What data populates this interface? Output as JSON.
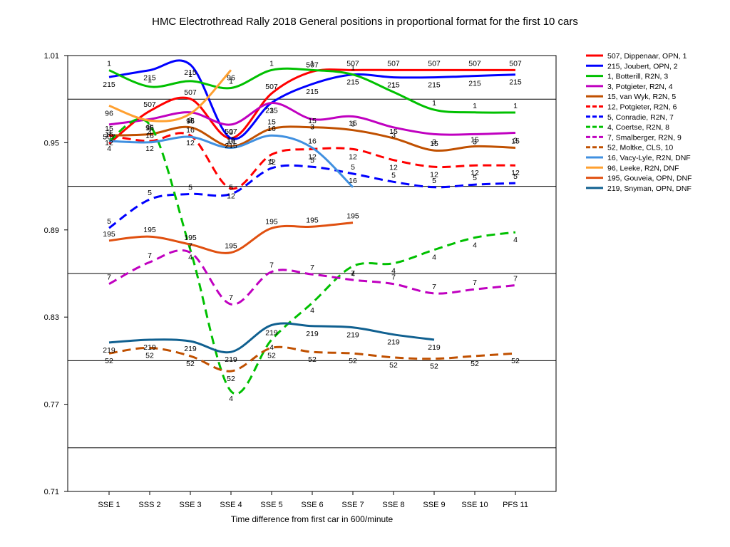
{
  "chart_data": {
    "type": "line",
    "title": "HMC Electrothread Rally 2018  General positions in proportional format for the first 10 cars",
    "xlabel": "Time difference from first car in 600/minute",
    "ylabel": "",
    "ylim": [
      0.71,
      1.01
    ],
    "yticks": [
      0.71,
      0.77,
      0.83,
      0.89,
      0.95,
      1.01
    ],
    "grid": true,
    "legend_position": "right",
    "categories": [
      "SSE 1",
      "SSS 2",
      "SSE 3",
      "SSE 4",
      "SSE 5",
      "SSE 6",
      "SSE 7",
      "SSE 8",
      "SSE 9",
      "SSE 10",
      "PFS 11"
    ],
    "series": [
      {
        "name": "507, Dippenaar, OPN, 1",
        "label": "507",
        "color": "#ff0000",
        "dash": false,
        "values": [
          0.9494,
          0.9718,
          0.9802,
          0.9531,
          0.9839,
          0.9989,
          1.0,
          1.0,
          1.0,
          1.0,
          1.0
        ]
      },
      {
        "name": "215, Joubert, OPN, 2",
        "label": "215",
        "color": "#0000ff",
        "dash": false,
        "values": [
          0.9952,
          0.9999,
          1.0037,
          0.9531,
          0.9775,
          0.9904,
          0.9969,
          0.995,
          0.995,
          0.996,
          0.9969
        ]
      },
      {
        "name": "1, Botterill, R2N, 3",
        "label": "1",
        "color": "#00c000",
        "dash": false,
        "values": [
          0.9999,
          0.9886,
          0.9924,
          0.9877,
          1.0,
          1.0,
          0.9969,
          0.9849,
          0.9727,
          0.9709,
          0.9708
        ]
      },
      {
        "name": "3, Potgieter, R2N, 4",
        "label": "3",
        "color": "#c000c0",
        "dash": false,
        "values": [
          0.9625,
          0.9662,
          0.9709,
          0.9625,
          0.9774,
          0.9662,
          0.9681,
          0.9606,
          0.9559,
          0.9559,
          0.9568
        ]
      },
      {
        "name": "15, van Wyk, R2N, 5",
        "label": "15",
        "color": "#c05000",
        "dash": false,
        "values": [
          0.955,
          0.9559,
          0.9606,
          0.9475,
          0.9597,
          0.9606,
          0.9587,
          0.9531,
          0.9447,
          0.9475,
          0.9465
        ]
      },
      {
        "name": "12, Potgieter, R2N, 6",
        "label": "12",
        "color": "#ff0000",
        "dash": true,
        "values": [
          0.955,
          0.9512,
          0.955,
          0.9185,
          0.9419,
          0.9456,
          0.9456,
          0.9381,
          0.9334,
          0.9344,
          0.9344
        ]
      },
      {
        "name": "5, Conradie, R2N, 7",
        "label": "5",
        "color": "#0000ff",
        "dash": true,
        "values": [
          0.8913,
          0.911,
          0.9147,
          0.9147,
          0.9325,
          0.9334,
          0.9287,
          0.9231,
          0.9194,
          0.9212,
          0.9222
        ]
      },
      {
        "name": "4, Coertse, R2N, 8",
        "label": "4",
        "color": "#00c000",
        "dash": true,
        "values": [
          0.9512,
          0.9624,
          0.8763,
          0.779,
          0.8144,
          0.8398,
          0.865,
          0.867,
          0.8763,
          0.8847,
          0.8884
        ]
      },
      {
        "name": "7, Smalberger, R2N, 9",
        "label": "7",
        "color": "#c000c0",
        "dash": true,
        "values": [
          0.8528,
          0.8678,
          0.8744,
          0.8388,
          0.8612,
          0.8594,
          0.8556,
          0.8528,
          0.8463,
          0.8491,
          0.8519
        ]
      },
      {
        "name": "52, Moltke, CLS, 10",
        "label": "52",
        "color": "#c05000",
        "dash": true,
        "values": [
          0.805,
          0.8088,
          0.8032,
          0.7928,
          0.8088,
          0.806,
          0.805,
          0.8022,
          0.8013,
          0.8032,
          0.805
        ]
      },
      {
        "name": "16, Vacy-Lyle, R2N, DNF",
        "label": "16",
        "color": "#4090e0",
        "dash": false,
        "values": [
          0.9512,
          0.9503,
          0.954,
          0.9465,
          0.955,
          0.9465,
          0.9194,
          null,
          null,
          null,
          null
        ]
      },
      {
        "name": "96, Leeke, R2N, DNF",
        "label": "96",
        "color": "#ffa030",
        "dash": false,
        "values": [
          0.9755,
          0.9653,
          0.97,
          1.0,
          null,
          null,
          null,
          null,
          null,
          null,
          null
        ]
      },
      {
        "name": "195, Gouveia, OPN, DNF",
        "label": "195",
        "color": "#e05010",
        "dash": false,
        "values": [
          0.8826,
          0.8854,
          0.88,
          0.8744,
          0.8912,
          0.8922,
          0.895,
          null,
          null,
          null,
          null
        ]
      },
      {
        "name": "219, Snyman, OPN, DNF",
        "label": "219",
        "color": "#106090",
        "dash": false,
        "values": [
          0.8125,
          0.8144,
          0.8134,
          0.806,
          0.8245,
          0.8238,
          0.8229,
          0.818,
          0.8144,
          null,
          null
        ]
      }
    ]
  }
}
